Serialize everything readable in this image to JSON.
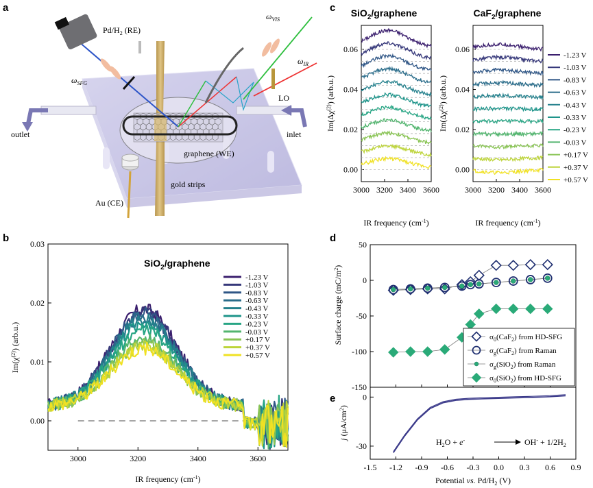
{
  "panel_labels": {
    "a": "a",
    "b": "b",
    "c": "c",
    "d": "d",
    "e": "e"
  },
  "schematic": {
    "pd_re": "Pd/H",
    "pd_re_sub": "2",
    "pd_re_tail": " (RE)",
    "omega_sfg": "ω",
    "omega_sfg_sub": "SFG",
    "omega_vis": "ω",
    "omega_vis_sub": "VIS",
    "omega_ir": "ω",
    "omega_ir_sub": "IR",
    "lo": "LO",
    "outlet": "outlet",
    "inlet": "inlet",
    "graphene_we": "graphene (WE)",
    "gold_strips": "gold strips",
    "au_ce": "Au (CE)"
  },
  "voltages": [
    "-1.23 V",
    "-1.03 V",
    "-0.83 V",
    "-0.63 V",
    "-0.43 V",
    "-0.33 V",
    "-0.23 V",
    "-0.03 V",
    "+0.17 V",
    "+0.37 V",
    "+0.57 V"
  ],
  "colors": [
    "#3b1f6e",
    "#36387a",
    "#2f5686",
    "#2a6c8a",
    "#24808c",
    "#1e948a",
    "#27a584",
    "#53b56f",
    "#89c454",
    "#bdd43a",
    "#f0e123"
  ],
  "chart_data": [
    {
      "panel": "b",
      "type": "line",
      "title": "SiO2/graphene",
      "xlabel": "IR frequency (cm⁻¹)",
      "ylabel": "Im(χ(2)) (arb.u.)",
      "xlim": [
        2900,
        3700
      ],
      "ylim": [
        -0.005,
        0.03
      ],
      "xticks": [
        "3000",
        "3200",
        "3400",
        "3600"
      ],
      "yticks": [
        "0.00",
        "0.01",
        "0.02",
        "0.03"
      ],
      "legend": "top-right",
      "baseline": 0.0,
      "series_peaks": [
        0.0165,
        0.0162,
        0.0158,
        0.0152,
        0.0148,
        0.014,
        0.013,
        0.0115,
        0.0105,
        0.0102,
        0.0098
      ]
    },
    {
      "panel": "c-left",
      "type": "line",
      "title": "SiO2/graphene",
      "xlabel": "IR frequency (cm⁻¹)",
      "ylabel": "Im(Δχ(2)) (arb.u.)",
      "xlim": [
        3000,
        3600
      ],
      "ylim": [
        -0.006,
        0.072
      ],
      "xticks": [
        "3000",
        "3200",
        "3400",
        "3600"
      ],
      "yticks": [
        "0.00",
        "0.02",
        "0.04",
        "0.06"
      ],
      "offsets": [
        0.06,
        0.054,
        0.048,
        0.042,
        0.036,
        0.03,
        0.024,
        0.018,
        0.012,
        0.006,
        0.0
      ]
    },
    {
      "panel": "c-right",
      "type": "line",
      "title": "CaF2/graphene",
      "xlabel": "IR frequency (cm⁻¹)",
      "ylabel": "Im(Δχ(2)) (arb.u.)",
      "xlim": [
        3000,
        3600
      ],
      "ylim": [
        -0.006,
        0.072
      ],
      "xticks": [
        "3000",
        "3200",
        "3400",
        "3600"
      ],
      "yticks": [
        "0.00",
        "0.02",
        "0.04",
        "0.06"
      ],
      "legend": "right",
      "offsets": [
        0.06,
        0.054,
        0.048,
        0.042,
        0.036,
        0.03,
        0.024,
        0.018,
        0.012,
        0.006,
        0.0
      ]
    },
    {
      "panel": "d",
      "type": "scatter",
      "ylabel": "Surface charge (mC/m²)",
      "xlim": [
        -1.5,
        0.9
      ],
      "ylim": [
        -150,
        50
      ],
      "yticks": [
        "50",
        "0",
        "-50",
        "-100",
        "-150"
      ],
      "legend": "bottom-right",
      "x": [
        -1.23,
        -1.03,
        -0.83,
        -0.63,
        -0.43,
        -0.33,
        -0.23,
        -0.03,
        0.17,
        0.37,
        0.57
      ],
      "series": [
        {
          "name": "σ0(CaF2) from HD-SFG",
          "marker": "open-diamond",
          "values": [
            -14,
            -13,
            -12,
            -12,
            -6,
            -2,
            7,
            21,
            21,
            22,
            22
          ]
        },
        {
          "name": "σg(CaF2) from Raman",
          "marker": "open-circle",
          "values": [
            -13,
            -12,
            -11,
            -10,
            -8,
            -6,
            -5,
            -3,
            -1,
            1,
            3
          ]
        },
        {
          "name": "σg(SiO2) from Raman",
          "marker": "filled-circle",
          "values": [
            -13,
            -12,
            -11,
            -10,
            -8,
            -6,
            -5,
            -3,
            -1,
            1,
            3
          ]
        },
        {
          "name": "σ0(SiO2) from HD-SFG",
          "marker": "filled-diamond",
          "values": [
            -101,
            -100,
            -100,
            -97,
            -80,
            -62,
            -47,
            -40,
            -40,
            -40,
            -40
          ]
        }
      ]
    },
    {
      "panel": "e",
      "type": "line",
      "xlabel": "Potential vs. Pd/H2 (V)",
      "ylabel": "j (μA/cm²)",
      "xlim": [
        -1.5,
        0.9
      ],
      "ylim": [
        -38,
        6
      ],
      "xticks": [
        "-1.5",
        "-1.2",
        "-0.9",
        "-0.6",
        "-0.3",
        "0.0",
        "0.3",
        "0.6",
        "0.9"
      ],
      "yticks": [
        "0",
        "-30"
      ],
      "annotation": "H2O + e⁻ → OH⁻ + 1/2H2",
      "x": [
        -1.23,
        -1.1,
        -0.95,
        -0.8,
        -0.65,
        -0.5,
        -0.35,
        -0.2,
        0.0,
        0.2,
        0.4,
        0.6,
        0.78
      ],
      "values": [
        -34,
        -24,
        -14,
        -7,
        -3.5,
        -2,
        -1.4,
        -1.1,
        -0.8,
        -0.5,
        -0.2,
        0.2,
        0.8
      ]
    }
  ],
  "text": {
    "b_title": "SiO",
    "b_title_sub": "2",
    "b_title_tail": "/graphene",
    "c_title_l": "SiO",
    "c_title_l_sub": "2",
    "c_title_l_tail": "/graphene",
    "c_title_r": "CaF",
    "c_title_r_sub": "2",
    "c_title_r_tail": "/graphene",
    "ir_freq": "IR frequency (cm",
    "ir_freq_sup": "-1",
    "ir_freq_tail": ")",
    "b_ylabel": "Im(χ",
    "b_ylabel_sup": "(2)",
    "b_ylabel_tail": ") (arb.u.)",
    "c_ylabel": "Im(Δχ",
    "c_ylabel_sup": "(2)",
    "c_ylabel_tail": ") (arb.u.)",
    "d_ylabel": "Surface charge (mC/m",
    "d_ylabel_sup": "2",
    "d_ylabel_tail": ")",
    "e_ylabel": "j",
    "e_ylabel_tail": " (μA/cm",
    "e_ylabel_sup": "2",
    "e_ylabel_end": ")",
    "e_xlabel": "Potential ",
    "e_xlabel_it": "vs.",
    "e_xlabel_tail": " Pd/H",
    "e_xlabel_sub": "2",
    "e_xlabel_end": " (V)",
    "eq_left": "H",
    "eq_left_sub": "2",
    "eq_left_mid": "O + ",
    "eq_left_e": "e",
    "eq_left_sup": "-",
    "eq_right": "OH",
    "eq_right_sup": "-",
    "eq_right_tail": " + 1/2H",
    "eq_right_sub": "2",
    "leg1": "σ",
    "leg1_sub": "0",
    "leg1_mid": "(CaF",
    "leg1_sub2": "2",
    "leg1_tail": ") from HD-SFG",
    "leg2": "σ",
    "leg2_sub": "g",
    "leg2_mid": "(CaF",
    "leg2_sub2": "2",
    "leg2_tail": ") from Raman",
    "leg3": "σ",
    "leg3_sub": "g",
    "leg3_mid": "(SiO",
    "leg3_sub2": "2",
    "leg3_tail": ") from Raman",
    "leg4": "σ",
    "leg4_sub": "0",
    "leg4_mid": "(SiO",
    "leg4_sub2": "2",
    "leg4_tail": ") from HD-SFG"
  }
}
